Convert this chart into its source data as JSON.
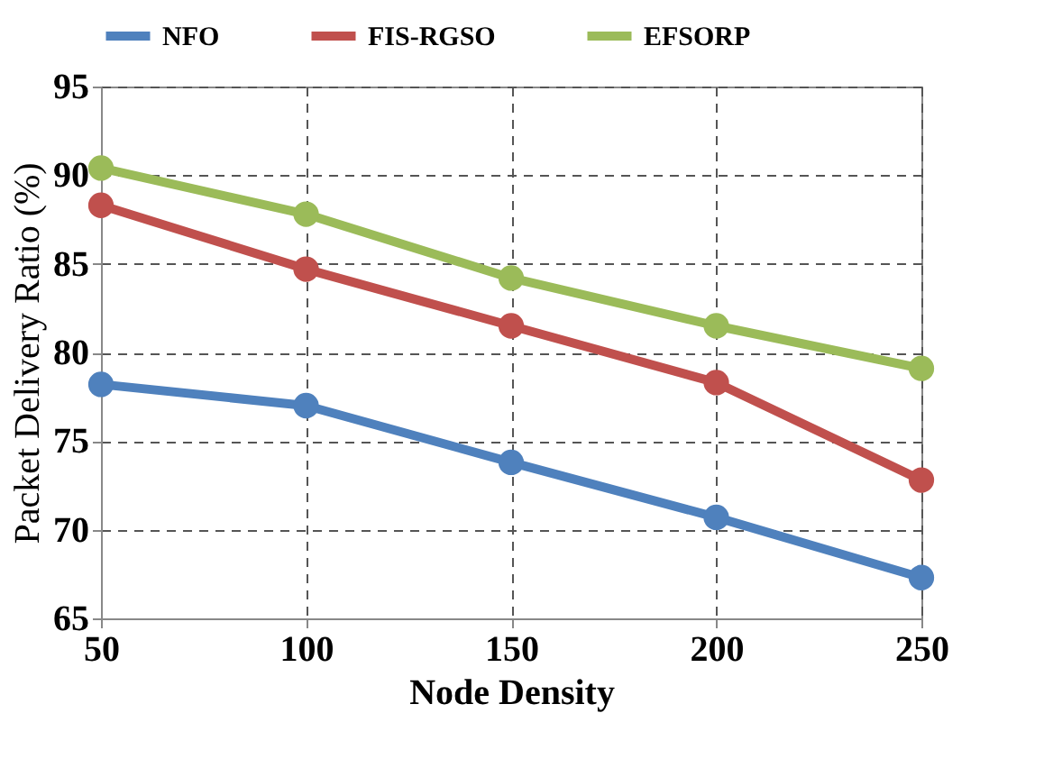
{
  "chart_data": {
    "type": "line",
    "xlabel": "Node Density",
    "ylabel": "Packet Delivery Ratio (%)",
    "x": [
      50,
      100,
      150,
      200,
      250
    ],
    "xlim": [
      50,
      250
    ],
    "xticks": [
      50,
      100,
      150,
      200,
      250
    ],
    "ylim": [
      65,
      95
    ],
    "yticks": [
      65,
      70,
      75,
      80,
      85,
      90,
      95
    ],
    "grid": true,
    "legend": "top",
    "marker": "circle",
    "line_style": "solid",
    "series": [
      {
        "name": "NFO",
        "color": "#4f81bd",
        "values": [
          78.2,
          77.0,
          73.8,
          70.7,
          67.3
        ]
      },
      {
        "name": "FIS-RGSO",
        "color": "#c0504d",
        "values": [
          88.3,
          84.7,
          81.5,
          78.3,
          72.8
        ]
      },
      {
        "name": "EFSORP",
        "color": "#9bbb59",
        "values": [
          90.4,
          87.8,
          84.2,
          81.5,
          79.1
        ]
      }
    ]
  }
}
